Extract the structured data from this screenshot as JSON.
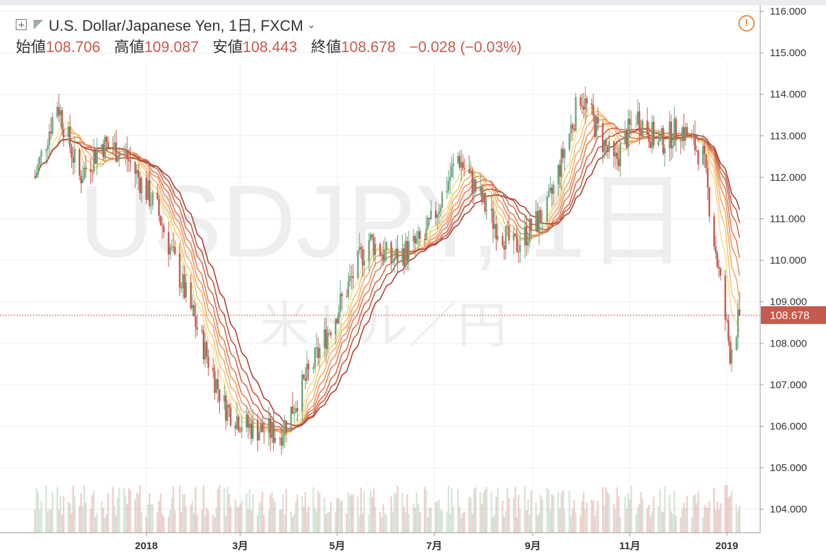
{
  "header": {
    "symbol_title": "U.S. Dollar/Japanese Yen, 1日, FXCM",
    "open_label": "始値",
    "open_value": "108.706",
    "high_label": "高値",
    "high_value": "109.087",
    "low_label": "安値",
    "low_value": "108.443",
    "close_label": "終値",
    "close_value": "108.678",
    "change": "−0.028 (−0.03%)"
  },
  "watermark": {
    "symbol": "USDJPY, 1日",
    "name": "米ドル／円"
  },
  "colors": {
    "up": "#6aa77c",
    "down": "#c65a4d",
    "last_price": "#c65a4d",
    "grid": "#eeeeee"
  },
  "chart_data": {
    "type": "candlestick",
    "y_axis": {
      "min": 104.0,
      "max": 116.4,
      "ticks": [
        "104.000",
        "105.000",
        "106.000",
        "107.000",
        "108.000",
        "109.000",
        "110.000",
        "111.000",
        "112.000",
        "113.000",
        "114.000",
        "115.000",
        "116.000"
      ]
    },
    "x_axis": {
      "ticks": [
        "2018",
        "3月",
        "5月",
        "7月",
        "9月",
        "11月",
        "2019"
      ]
    },
    "last_price": "108.678",
    "close_trajectory": [
      {
        "date": "2017-10-23",
        "close": 112.0
      },
      {
        "date": "2017-11-06",
        "close": 113.8
      },
      {
        "date": "2017-11-20",
        "close": 112.0
      },
      {
        "date": "2017-12-04",
        "close": 112.8
      },
      {
        "date": "2017-12-18",
        "close": 112.6
      },
      {
        "date": "2018-01-08",
        "close": 111.2
      },
      {
        "date": "2018-01-29",
        "close": 108.8
      },
      {
        "date": "2018-02-19",
        "close": 106.5
      },
      {
        "date": "2018-03-05",
        "close": 106.0
      },
      {
        "date": "2018-03-26",
        "close": 105.8
      },
      {
        "date": "2018-04-16",
        "close": 107.5
      },
      {
        "date": "2018-05-07",
        "close": 109.3
      },
      {
        "date": "2018-05-21",
        "close": 110.5
      },
      {
        "date": "2018-06-04",
        "close": 110.0
      },
      {
        "date": "2018-06-25",
        "close": 110.5
      },
      {
        "date": "2018-07-16",
        "close": 112.5
      },
      {
        "date": "2018-08-06",
        "close": 111.0
      },
      {
        "date": "2018-08-20",
        "close": 110.3
      },
      {
        "date": "2018-09-10",
        "close": 111.2
      },
      {
        "date": "2018-10-01",
        "close": 114.0
      },
      {
        "date": "2018-10-22",
        "close": 112.3
      },
      {
        "date": "2018-11-05",
        "close": 113.5
      },
      {
        "date": "2018-11-19",
        "close": 112.8
      },
      {
        "date": "2018-12-03",
        "close": 113.2
      },
      {
        "date": "2018-12-17",
        "close": 112.5
      },
      {
        "date": "2018-12-24",
        "close": 110.5
      },
      {
        "date": "2019-01-03",
        "close": 107.8
      },
      {
        "date": "2019-01-09",
        "close": 108.678
      }
    ],
    "moving_averages": {
      "count": 8,
      "colors": [
        "#f5e28a",
        "#f3c779",
        "#f0ae6c",
        "#eb9561",
        "#e07f57",
        "#d36a4d",
        "#c05743",
        "#a83f33"
      ]
    }
  }
}
